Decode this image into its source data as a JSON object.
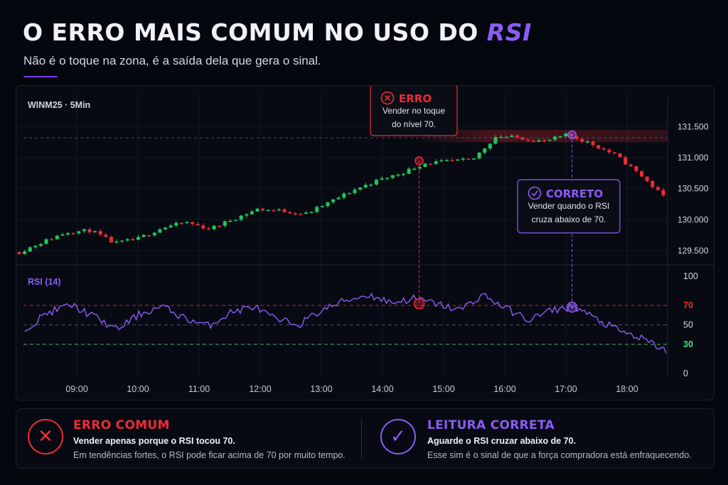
{
  "header": {
    "title_main": "O ERRO MAIS COMUM NO USO DO ",
    "title_highlight": "RSI",
    "subtitle": "Não é o toque na zona, é a saída dela que gera o sinal."
  },
  "colors": {
    "bull": "#22c55e",
    "bear": "#ef2b36",
    "rsi_line": "#8b5cf6",
    "error": "#ef2b36",
    "correct": "#8b5cf6",
    "level_30": "#4ade80"
  },
  "chart_data": {
    "type": "candlestick",
    "symbol_label": "WINM25 · 5Min",
    "x_ticks": [
      "09:00",
      "10:00",
      "11:00",
      "12:00",
      "13:00",
      "14:00",
      "15:00",
      "16:00",
      "17:00",
      "18:00"
    ],
    "price_ticks": [
      "131.500",
      "131.000",
      "130.500",
      "130.000",
      "129.500"
    ],
    "price_tick_values": [
      131500,
      131000,
      130500,
      130000,
      129500
    ],
    "price_range": [
      129350,
      131700
    ],
    "price_anchors": [
      [
        129480,
        129470
      ],
      [
        129640,
        129650
      ],
      [
        129760,
        129840
      ],
      [
        129850,
        129800
      ],
      [
        129620,
        129610
      ],
      [
        129690,
        129700
      ],
      [
        129800,
        129940
      ],
      [
        129950,
        129960
      ],
      [
        129850,
        129850
      ],
      [
        129980,
        130050
      ],
      [
        130160,
        130180
      ],
      [
        130150,
        130140
      ],
      [
        130100,
        130080
      ],
      [
        130240,
        130320
      ],
      [
        130420,
        130530
      ],
      [
        130590,
        130670
      ],
      [
        130720,
        130780
      ],
      [
        130870,
        130950
      ],
      [
        130950,
        130930
      ],
      [
        130930,
        131000
      ],
      [
        131300,
        131400
      ],
      [
        131340,
        131300
      ],
      [
        131240,
        131280
      ],
      [
        131340,
        131400
      ],
      [
        131240,
        131200
      ],
      [
        131080,
        131000
      ],
      [
        130820,
        130650
      ],
      [
        130400,
        130350
      ]
    ],
    "resistance_zone": [
      131250,
      131450
    ],
    "resistance_dash_price": 131320,
    "rsi": {
      "label": "RSI (14)",
      "ticks": [
        "100",
        "70",
        "50",
        "30",
        "0"
      ],
      "tick_values": [
        100,
        70,
        50,
        30,
        0
      ],
      "levels": [
        70,
        50,
        30
      ],
      "anchors": [
        [
          47,
          45
        ],
        [
          63,
          62
        ],
        [
          71,
          70
        ],
        [
          60,
          58
        ],
        [
          46,
          44
        ],
        [
          60,
          62
        ],
        [
          70,
          68
        ],
        [
          58,
          55
        ],
        [
          48,
          50
        ],
        [
          62,
          64
        ],
        [
          70,
          68
        ],
        [
          55,
          54
        ],
        [
          52,
          50
        ],
        [
          63,
          68
        ],
        [
          74,
          76
        ],
        [
          80,
          82
        ],
        [
          72,
          74
        ],
        [
          76,
          78
        ],
        [
          70,
          73
        ],
        [
          64,
          66
        ],
        [
          80,
          82
        ],
        [
          68,
          66
        ],
        [
          56,
          54
        ],
        [
          64,
          66
        ],
        [
          68,
          70
        ],
        [
          58,
          52
        ],
        [
          45,
          42
        ],
        [
          36,
          34
        ],
        [
          27,
          20
        ]
      ]
    },
    "markers": [
      {
        "kind": "error",
        "time": "14:36",
        "price": 130950,
        "rsi": 71.6
      },
      {
        "kind": "correct",
        "time": "17:06",
        "price": 131370,
        "rsi": 68.2
      }
    ]
  },
  "callouts": {
    "error": {
      "title": "ERRO",
      "line1": "Vender no toque",
      "line2": "do nível 70."
    },
    "correct": {
      "title": "CORRETO",
      "line1": "Vender quando o RSI",
      "line2": "cruza abaixo de 70."
    }
  },
  "bottom": {
    "error_card": {
      "title": "ERRO COMUM",
      "line1": "Vender apenas porque o RSI tocou 70.",
      "line2": "Em tendências fortes, o RSI pode ficar acima de 70 por muito tempo.",
      "icon": "x-circle-icon"
    },
    "correct_card": {
      "title": "LEITURA CORRETA",
      "line1": "Aguarde o RSI cruzar abaixo de 70.",
      "line2": "Esse sim é o sinal de que a força compradora está enfraquecendo.",
      "icon": "check-circle-icon"
    }
  }
}
